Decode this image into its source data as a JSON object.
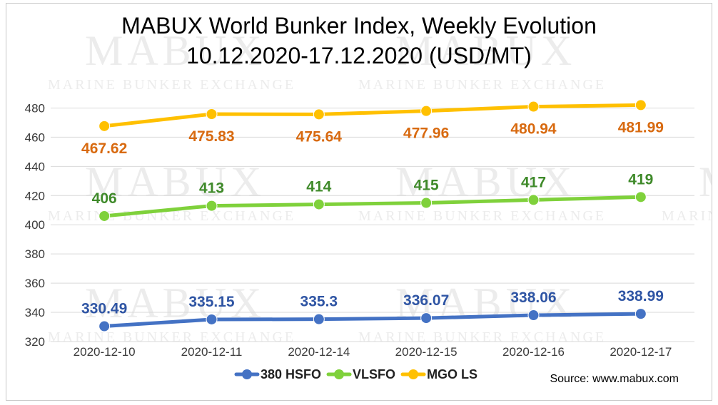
{
  "chart_data": {
    "type": "line",
    "title": "MABUX World Bunker Index, Weekly Evolution",
    "subtitle": "10.12.2020-17.12.2020 (USD/MT)",
    "categories": [
      "2020-12-10",
      "2020-12-11",
      "2020-12-14",
      "2020-12-15",
      "2020-12-16",
      "2020-12-17"
    ],
    "ylim": [
      320,
      490
    ],
    "yticks": [
      320,
      340,
      360,
      380,
      400,
      420,
      440,
      460,
      480
    ],
    "grid": true,
    "legend_position": "bottom",
    "series": [
      {
        "name": "380 HSFO",
        "values": [
          330.49,
          335.15,
          335.3,
          336.07,
          338.06,
          338.99
        ],
        "labels": [
          "330.49",
          "335.15",
          "335.3",
          "336.07",
          "338.06",
          "338.99"
        ],
        "color": "#4472c4",
        "label_color": "#2f55a4"
      },
      {
        "name": "VLSFO",
        "values": [
          406,
          413,
          414,
          415,
          417,
          419
        ],
        "labels": [
          "406",
          "413",
          "414",
          "415",
          "417",
          "419"
        ],
        "color": "#7fd13b",
        "label_color": "#3f8a2a"
      },
      {
        "name": "MGO LS",
        "values": [
          467.62,
          475.83,
          475.64,
          477.96,
          480.94,
          481.99
        ],
        "labels": [
          "467.62",
          "475.83",
          "475.64",
          "477.96",
          "480.94",
          "481.99"
        ],
        "color": "#ffc000",
        "label_color": "#d86a10"
      }
    ],
    "source": "Source: www.mabux.com"
  },
  "watermark": {
    "big": "MABUX",
    "small": "MARINE BUNKER EXCHANGE"
  }
}
